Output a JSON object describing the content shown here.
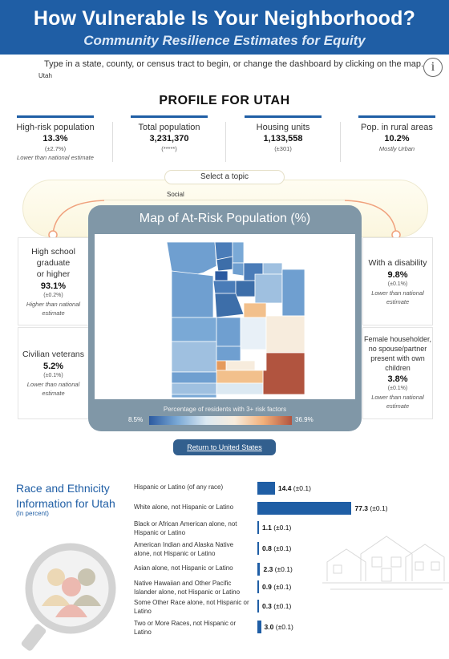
{
  "header": {
    "title": "How Vulnerable Is Your Neighborhood?",
    "subtitle": "Community Resilience Estimates for Equity"
  },
  "instructions": "Type in a state, county, or census tract to begin, or change the dashboard by clicking on the map.",
  "selected_state": "Utah",
  "info_icon_glyph": "i",
  "profile_title": "PROFILE FOR UTAH",
  "stats": [
    {
      "label": "High-risk population",
      "value": "13.3%",
      "moe": "(±2.7%)",
      "note": "Lower than national estimate"
    },
    {
      "label": "Total population",
      "value": "3,231,370",
      "moe": "(*****)",
      "note": ""
    },
    {
      "label": "Housing units",
      "value": "1,133,558",
      "moe": "(±301)",
      "note": ""
    },
    {
      "label": "Pop. in rural areas",
      "value": "10.2%",
      "moe": "",
      "note": "Mostly Urban"
    }
  ],
  "topic": {
    "label": "Select a topic",
    "value": "Social"
  },
  "side_cards": {
    "left_top": {
      "label_lines": [
        "High school",
        "graduate",
        "or higher"
      ],
      "value": "93.1%",
      "moe": "(±0.2%)",
      "note_lines": [
        "Higher than national",
        "estimate"
      ]
    },
    "left_bottom": {
      "label_lines": [
        "Civilian veterans"
      ],
      "value": "5.2%",
      "moe": "(±0.1%)",
      "note_lines": [
        "Lower than national",
        "estimate"
      ]
    },
    "right_top": {
      "label_lines": [
        "With a disability"
      ],
      "value": "9.8%",
      "moe": "(±0.1%)",
      "note_lines": [
        "Lower than national",
        "estimate"
      ]
    },
    "right_bottom": {
      "label_lines": [
        "Female householder,",
        "no spouse/partner",
        "present with own",
        "children"
      ],
      "value": "3.8%",
      "moe": "(±0.1%)",
      "note_lines": [
        "Lower than national",
        "estimate"
      ]
    }
  },
  "map": {
    "title": "Map of At-Risk Population (%)",
    "legend_title": "Percentage of residents with 3+ risk factors",
    "legend_min": "8.5%",
    "legend_max": "36.9%",
    "colors": {
      "low": "#2c5aa0",
      "mid_low": "#7aa9d6",
      "neutral": "#dce9f2",
      "mid_high": "#f2b07a",
      "high": "#b1543f"
    }
  },
  "return_button": "Return to United States",
  "race": {
    "title_lines": [
      "Race and Ethnicity",
      "Information for Utah"
    ],
    "subtitle": "(In percent)",
    "max_value": 100,
    "rows": [
      {
        "label_lines": [
          "Hispanic or Latino (of any race)"
        ],
        "value": 14.4,
        "display": "14.4",
        "moe": "(±0.1)"
      },
      {
        "label_lines": [
          "White alone, not Hispanic or Latino"
        ],
        "value": 77.3,
        "display": "77.3",
        "moe": "(±0.1)"
      },
      {
        "label_lines": [
          "Black or African American alone, not",
          "Hispanic or Latino"
        ],
        "value": 1.1,
        "display": "1.1",
        "moe": "(±0.1)"
      },
      {
        "label_lines": [
          "American Indian and Alaska Native",
          "alone, not Hispanic or Latino"
        ],
        "value": 0.8,
        "display": "0.8",
        "moe": "(±0.1)"
      },
      {
        "label_lines": [
          "Asian alone, not Hispanic or Latino"
        ],
        "value": 2.3,
        "display": "2.3",
        "moe": "(±0.1)"
      },
      {
        "label_lines": [
          "Native Hawaiian and Other Pacific",
          "Islander alone, not Hispanic or Latino"
        ],
        "value": 0.9,
        "display": "0.9",
        "moe": "(±0.1)"
      },
      {
        "label_lines": [
          "Some Other Race alone, not Hispanic or",
          "Latino"
        ],
        "value": 0.3,
        "display": "0.3",
        "moe": "(±0.1)"
      },
      {
        "label_lines": [
          "Two or More Races, not Hispanic or",
          "Latino"
        ],
        "value": 3.0,
        "display": "3.0",
        "moe": "(±0.1)"
      }
    ]
  }
}
